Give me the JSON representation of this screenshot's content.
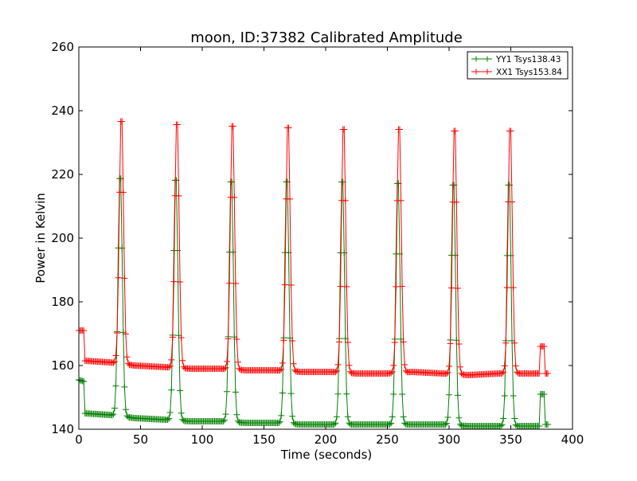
{
  "chart_data": {
    "type": "line",
    "title": "moon, ID:37382 Calibrated Amplitude",
    "xlabel": "Time (seconds)",
    "ylabel": "Power in Kelvin",
    "xlim": [
      0,
      400
    ],
    "ylim": [
      140,
      260
    ],
    "xticks": [
      0,
      50,
      100,
      150,
      200,
      250,
      300,
      350,
      400
    ],
    "yticks": [
      140,
      160,
      180,
      200,
      220,
      240,
      260
    ],
    "grid": false,
    "legend_position": "top-right",
    "sample_interval_s": 1,
    "t_end": 380,
    "peak_sigma_s": 1.7,
    "series": [
      {
        "name": "YY1 Tsys138.43",
        "color": "#008000",
        "baseline": [
          [
            0,
            155.5
          ],
          [
            4,
            155
          ],
          [
            5,
            145
          ],
          [
            25,
            144.5
          ],
          [
            45,
            143.5
          ],
          [
            70,
            143
          ],
          [
            90,
            142.5
          ],
          [
            115,
            142.5
          ],
          [
            135,
            142
          ],
          [
            160,
            142
          ],
          [
            180,
            141.5
          ],
          [
            250,
            141.5
          ],
          [
            295,
            141.5
          ],
          [
            315,
            141
          ],
          [
            373,
            141
          ],
          [
            374,
            151
          ],
          [
            377,
            151
          ],
          [
            378,
            141.5
          ],
          [
            380,
            141.5
          ]
        ],
        "peaks": [
          [
            33.5,
            222
          ],
          [
            78.5,
            221.5
          ],
          [
            123.5,
            221
          ],
          [
            168.5,
            221
          ],
          [
            213.5,
            221
          ],
          [
            258.5,
            220.5
          ],
          [
            303.5,
            220
          ],
          [
            348.5,
            220
          ]
        ]
      },
      {
        "name": "XX1 Tsys153.84",
        "color": "#ff0000",
        "baseline": [
          [
            0,
            171
          ],
          [
            4,
            171
          ],
          [
            5,
            161.5
          ],
          [
            25,
            161
          ],
          [
            45,
            160
          ],
          [
            70,
            159.5
          ],
          [
            90,
            159
          ],
          [
            115,
            159
          ],
          [
            135,
            158.5
          ],
          [
            160,
            158.5
          ],
          [
            180,
            158
          ],
          [
            205,
            158
          ],
          [
            225,
            157.5
          ],
          [
            250,
            157.5
          ],
          [
            270,
            158
          ],
          [
            295,
            157.5
          ],
          [
            315,
            157
          ],
          [
            340,
            157.5
          ],
          [
            373,
            157.5
          ],
          [
            374,
            166
          ],
          [
            377,
            166
          ],
          [
            378,
            157.5
          ],
          [
            380,
            157.5
          ]
        ],
        "peaks": [
          [
            34.5,
            240
          ],
          [
            79.5,
            239
          ],
          [
            124.5,
            238.5
          ],
          [
            169.5,
            238
          ],
          [
            214.5,
            237.5
          ],
          [
            259.5,
            237.5
          ],
          [
            304.5,
            237
          ],
          [
            349.5,
            237
          ]
        ]
      }
    ]
  }
}
